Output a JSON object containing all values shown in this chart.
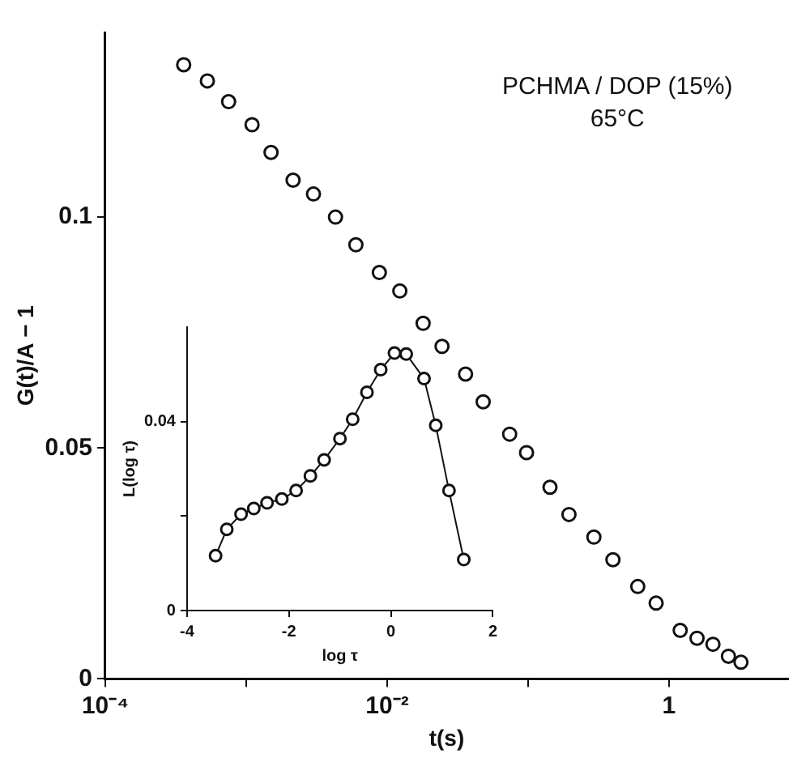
{
  "chart_data": [
    {
      "type": "scatter",
      "xlabel": "t(s)",
      "ylabel": "G(t)/A − 1",
      "annotations": [
        "PCHMA / DOP (15%)",
        "65°C"
      ],
      "log": "x",
      "marker": "circle",
      "grid": false,
      "legend": false,
      "xlim": [
        0.0001,
        7
      ],
      "xticks": [
        {
          "value": 0.0001,
          "label": "10⁻⁴"
        },
        {
          "value": 0.001,
          "label": null
        },
        {
          "value": 0.01,
          "label": "10⁻²"
        },
        {
          "value": 0.1,
          "label": null
        },
        1
      ],
      "ylim": [
        0,
        0.14
      ],
      "yticks": [
        0,
        0.05,
        0.1
      ],
      "series": [
        {
          "color": "#111111",
          "x": [
            0.00036,
            0.00053,
            0.00075,
            0.0011,
            0.0015,
            0.00215,
            0.003,
            0.0043,
            0.006,
            0.0088,
            0.0123,
            0.018,
            0.0245,
            0.036,
            0.048,
            0.074,
            0.0975,
            0.143,
            0.195,
            0.293,
            0.4,
            0.6,
            0.81,
            1.2,
            1.58,
            2.05,
            2.64,
            3.24
          ],
          "values": [
            0.133,
            0.1295,
            0.125,
            0.12,
            0.114,
            0.108,
            0.105,
            0.1,
            0.094,
            0.088,
            0.084,
            0.077,
            0.072,
            0.066,
            0.06,
            0.053,
            0.049,
            0.0415,
            0.0356,
            0.0307,
            0.0258,
            0.02,
            0.0164,
            0.0105,
            0.0088,
            0.0075,
            0.0049,
            0.0036
          ]
        }
      ]
    },
    {
      "type": "line",
      "xlabel": "log τ",
      "ylabel": "L(log τ)",
      "marker": "circle",
      "grid": false,
      "legend": false,
      "xlim": [
        -4,
        2
      ],
      "xticks": [
        -4,
        -2,
        0,
        2
      ],
      "ylim": [
        0,
        0.06
      ],
      "yticks": [
        0,
        {
          "value": 0.02,
          "label": null
        },
        0.04
      ],
      "series": [
        {
          "color": "#111111",
          "x": [
            -3.44,
            -3.22,
            -2.94,
            -2.69,
            -2.43,
            -2.14,
            -1.86,
            -1.58,
            -1.31,
            -1.0,
            -0.75,
            -0.47,
            -0.2,
            0.07,
            0.3,
            0.65,
            0.88,
            1.14,
            1.43
          ],
          "values": [
            0.0116,
            0.0172,
            0.0204,
            0.0216,
            0.0228,
            0.0236,
            0.0254,
            0.0285,
            0.0319,
            0.0364,
            0.0405,
            0.0462,
            0.051,
            0.0545,
            0.0543,
            0.0491,
            0.0392,
            0.0254,
            0.0108
          ]
        }
      ]
    }
  ]
}
